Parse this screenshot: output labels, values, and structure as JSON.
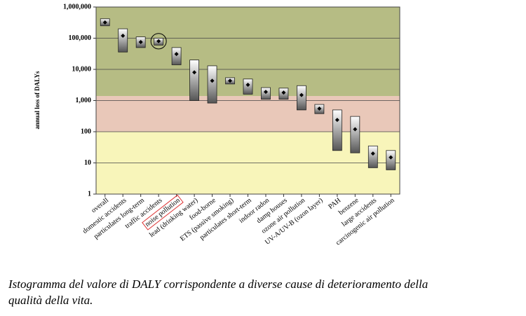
{
  "chart_data": {
    "type": "floatingbar",
    "y_label": "annual loss of DALYs",
    "caption_lines": [
      "Istogramma del valore di DALY corrispondente a diverse cause di deterioramento della",
      "qualità della vita."
    ],
    "categories": [
      "overall",
      "domestic accidents",
      "particulates long-term",
      "traffic accidents",
      "noise pollution",
      "lead (drinking water)",
      "food-borne",
      "ETS (passive smoking)",
      "particulates short-term",
      "indoor radon",
      "damp houses",
      "ozone air pollution",
      "UV-A/UV-B (ozon layer)",
      "PAH",
      "benzene",
      "large accidents",
      "carcinogenic air pollution"
    ],
    "high": [
      420000,
      200000,
      110000,
      100000,
      50000,
      20000,
      13000,
      5400,
      4900,
      2600,
      2500,
      3000,
      750,
      500,
      310,
      35,
      25
    ],
    "low": [
      250000,
      36000,
      50000,
      60000,
      14000,
      1000,
      830,
      3400,
      1600,
      1100,
      1100,
      500,
      380,
      25,
      21,
      7,
      6
    ],
    "values": [
      320000,
      120000,
      75000,
      80000,
      31000,
      8000,
      4300,
      4300,
      3200,
      1900,
      1800,
      1500,
      550,
      240,
      120,
      20,
      15
    ],
    "log_scale": true,
    "ylim": [
      1,
      1000000
    ],
    "yticks": [
      1,
      10,
      100,
      {
        "value": 1000,
        "label": "1,000"
      },
      {
        "value": 10000,
        "label": "10,000"
      },
      {
        "value": 100000,
        "label": "100,000"
      },
      {
        "value": 1000000,
        "label": "1,000,000"
      }
    ],
    "grid": true,
    "bands": [
      {
        "from": 1400,
        "to": 1000000,
        "color": "#b6bc84"
      },
      {
        "from": 100,
        "to": 1400,
        "color": "#e9c8b9"
      },
      {
        "from": 1,
        "to": 100,
        "color": "#f8f5ba"
      }
    ],
    "circled_bar": 3,
    "boxed_label": 4
  }
}
